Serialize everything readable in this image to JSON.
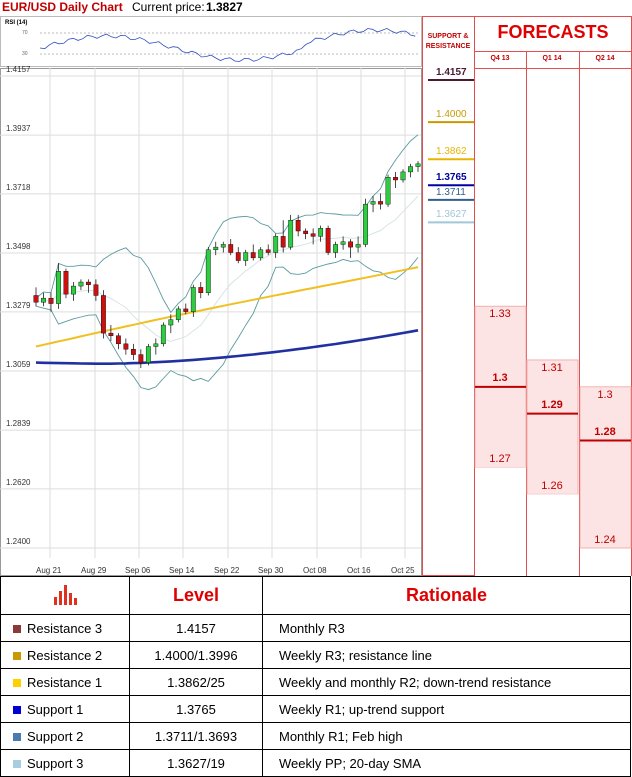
{
  "header": {
    "title": "EUR/USD Daily Chart",
    "price_label": "Current price:",
    "price_value": "1.3827"
  },
  "rsi": {
    "label": "RSI (14)",
    "tick_hi": "70",
    "tick_lo": "30"
  },
  "chart_data": {
    "type": "candlestick",
    "title": "EUR/USD Daily Chart",
    "ylim": [
      1.24,
      1.4157
    ],
    "y_ticks": [
      "1.4157",
      "1.3937",
      "1.3718",
      "1.3498",
      "1.3279",
      "1.3059",
      "1.2839",
      "1.2620",
      "1.2400"
    ],
    "x_ticks": [
      "Aug 21",
      "Aug 29",
      "Sep 06",
      "Sep 14",
      "Sep 22",
      "Sep 30",
      "Oct 08",
      "Oct 16",
      "Oct 25"
    ],
    "candles": [
      [
        1.334,
        1.337,
        1.33,
        1.3315
      ],
      [
        1.3315,
        1.335,
        1.33,
        1.333
      ],
      [
        1.333,
        1.335,
        1.328,
        1.331
      ],
      [
        1.331,
        1.346,
        1.329,
        1.343
      ],
      [
        1.343,
        1.344,
        1.333,
        1.3345
      ],
      [
        1.3345,
        1.339,
        1.332,
        1.3375
      ],
      [
        1.3375,
        1.34,
        1.336,
        1.339
      ],
      [
        1.339,
        1.34,
        1.335,
        1.338
      ],
      [
        1.338,
        1.34,
        1.332,
        1.334
      ],
      [
        1.334,
        1.336,
        1.318,
        1.32
      ],
      [
        1.32,
        1.323,
        1.317,
        1.319
      ],
      [
        1.319,
        1.32,
        1.314,
        1.316
      ],
      [
        1.316,
        1.318,
        1.312,
        1.314
      ],
      [
        1.314,
        1.316,
        1.31,
        1.312
      ],
      [
        1.312,
        1.314,
        1.307,
        1.309
      ],
      [
        1.309,
        1.316,
        1.308,
        1.315
      ],
      [
        1.315,
        1.318,
        1.312,
        1.316
      ],
      [
        1.316,
        1.324,
        1.315,
        1.323
      ],
      [
        1.323,
        1.327,
        1.32,
        1.325
      ],
      [
        1.325,
        1.33,
        1.324,
        1.329
      ],
      [
        1.329,
        1.331,
        1.327,
        1.328
      ],
      [
        1.328,
        1.338,
        1.326,
        1.337
      ],
      [
        1.337,
        1.339,
        1.333,
        1.335
      ],
      [
        1.335,
        1.352,
        1.334,
        1.351
      ],
      [
        1.351,
        1.354,
        1.349,
        1.352
      ],
      [
        1.352,
        1.354,
        1.35,
        1.353
      ],
      [
        1.353,
        1.355,
        1.349,
        1.35
      ],
      [
        1.35,
        1.352,
        1.346,
        1.347
      ],
      [
        1.347,
        1.351,
        1.345,
        1.35
      ],
      [
        1.35,
        1.353,
        1.347,
        1.348
      ],
      [
        1.348,
        1.352,
        1.347,
        1.351
      ],
      [
        1.351,
        1.353,
        1.349,
        1.35
      ],
      [
        1.35,
        1.357,
        1.348,
        1.356
      ],
      [
        1.356,
        1.362,
        1.35,
        1.352
      ],
      [
        1.352,
        1.364,
        1.351,
        1.362
      ],
      [
        1.362,
        1.364,
        1.356,
        1.358
      ],
      [
        1.358,
        1.359,
        1.355,
        1.357
      ],
      [
        1.357,
        1.359,
        1.353,
        1.356
      ],
      [
        1.356,
        1.36,
        1.354,
        1.359
      ],
      [
        1.359,
        1.36,
        1.349,
        1.35
      ],
      [
        1.35,
        1.354,
        1.348,
        1.353
      ],
      [
        1.353,
        1.356,
        1.351,
        1.354
      ],
      [
        1.354,
        1.355,
        1.348,
        1.352
      ],
      [
        1.352,
        1.356,
        1.35,
        1.353
      ],
      [
        1.353,
        1.37,
        1.352,
        1.368
      ],
      [
        1.368,
        1.371,
        1.365,
        1.369
      ],
      [
        1.369,
        1.372,
        1.366,
        1.368
      ],
      [
        1.368,
        1.379,
        1.367,
        1.378
      ],
      [
        1.378,
        1.38,
        1.374,
        1.377
      ],
      [
        1.377,
        1.381,
        1.376,
        1.38
      ],
      [
        1.38,
        1.383,
        1.378,
        1.382
      ],
      [
        1.382,
        1.384,
        1.38,
        1.383
      ]
    ],
    "levels": [
      {
        "value": "1.4157",
        "y": 1.4157,
        "color": "#4b1a2e"
      },
      {
        "value": "1.4000",
        "y": 1.4,
        "color": "#c99a00"
      },
      {
        "value": "1.3862",
        "y": 1.3862,
        "color": "#e8b400"
      },
      {
        "value": "1.3765",
        "y": 1.3765,
        "color": "#0000a0"
      },
      {
        "value": "1.3711",
        "y": 1.3711,
        "color": "#2f5f8a"
      },
      {
        "value": "1.3627",
        "y": 1.3627,
        "color": "#9fc8d8"
      }
    ],
    "support_resistance_header": "SUPPORT & RESISTANCE",
    "forecast_header": "FORECASTS",
    "forecasts": [
      {
        "period": "Q4 13",
        "high": 1.33,
        "mid": 1.3,
        "low": 1.27,
        "high_label": "1.33",
        "mid_label": "1.3",
        "low_label": "1.27"
      },
      {
        "period": "Q1 14",
        "high": 1.31,
        "mid": 1.29,
        "low": 1.26,
        "high_label": "1.31",
        "mid_label": "1.29",
        "low_label": "1.26"
      },
      {
        "period": "Q2 14",
        "high": 1.3,
        "mid": 1.28,
        "low": 1.24,
        "high_label": "1.3",
        "mid_label": "1.28",
        "low_label": "1.24"
      }
    ]
  },
  "table": {
    "col_level": "Level",
    "col_rationale": "Rationale",
    "rows": [
      {
        "name": "Resistance 3",
        "level": "1.4157",
        "rationale": "Monthly R3",
        "color": "#8b3a3a"
      },
      {
        "name": "Resistance 2",
        "level": "1.4000/1.3996",
        "rationale": "Weekly R3; resistance line",
        "color": "#c99a00"
      },
      {
        "name": "Resistance 1",
        "level": "1.3862/25",
        "rationale": "Weekly and monthly R2; down-trend resistance",
        "color": "#ffd000"
      },
      {
        "name": "Support 1",
        "level": "1.3765",
        "rationale": "Weekly R1; up-trend support",
        "color": "#0000d0"
      },
      {
        "name": "Support 2",
        "level": "1.3711/1.3693",
        "rationale": "Monthly R1; Feb high",
        "color": "#4a7ab0"
      },
      {
        "name": "Support 3",
        "level": "1.3627/19",
        "rationale": "Weekly PP; 20-day SMA",
        "color": "#a8cce0"
      }
    ]
  }
}
